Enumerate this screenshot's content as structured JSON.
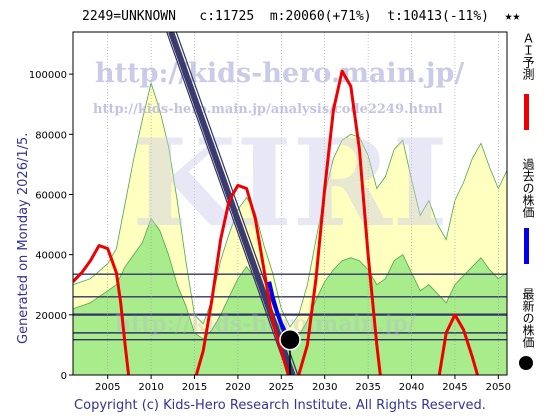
{
  "header": {
    "code": "2249=UNKNOWN",
    "current": "c:11725",
    "median": "m:20060(+71%)",
    "target": "t:10413(-11%)",
    "stars": "★★"
  },
  "generated_label": "Generated on Monday 2026/1/5.",
  "copyright": "Copyright (c) Kids-Hero Research Institute. All Rights Reserved.",
  "watermark": {
    "url_main": "http://kids-hero.main.jp/",
    "url_sub": "http://kids-hero.main.jp/analysis/code2249.html",
    "logo": "KIRI"
  },
  "legend": {
    "ai_forecast": "ＡＩ予測",
    "past_price": "過去の株価",
    "latest_price": "最新の株価",
    "colors": {
      "ai_forecast": "#ee0000",
      "past_price": "#0000ee",
      "latest_price": "#000000"
    }
  },
  "chart_data": {
    "type": "area",
    "x_range": [
      2001,
      2051
    ],
    "y_range": [
      0,
      114000
    ],
    "x_ticks": [
      2005,
      2010,
      2015,
      2020,
      2025,
      2030,
      2035,
      2040,
      2045,
      2050
    ],
    "y_ticks": [
      0,
      20000,
      40000,
      60000,
      80000,
      100000
    ],
    "horizontal_levels": [
      11725,
      14000,
      20060,
      26000,
      33500
    ],
    "latest_point": {
      "x": 2026.0,
      "y": 11725
    },
    "band_outer": [
      [
        2001,
        30000
      ],
      [
        2003,
        32000
      ],
      [
        2005,
        37000
      ],
      [
        2006,
        42000
      ],
      [
        2007,
        57000
      ],
      [
        2008,
        72000
      ],
      [
        2009,
        85000
      ],
      [
        2010,
        97000
      ],
      [
        2011,
        88000
      ],
      [
        2012,
        76000
      ],
      [
        2013,
        58000
      ],
      [
        2014,
        38000
      ],
      [
        2015,
        20000
      ],
      [
        2016,
        17000
      ],
      [
        2017,
        25000
      ],
      [
        2018,
        38000
      ],
      [
        2019,
        47000
      ],
      [
        2020,
        55000
      ],
      [
        2021,
        59000
      ],
      [
        2022,
        54000
      ],
      [
        2023,
        43000
      ],
      [
        2024,
        34000
      ],
      [
        2025,
        22000
      ],
      [
        2026,
        16000
      ],
      [
        2027,
        20000
      ],
      [
        2028,
        30000
      ],
      [
        2029,
        45000
      ],
      [
        2030,
        60000
      ],
      [
        2031,
        72000
      ],
      [
        2032,
        78000
      ],
      [
        2033,
        80000
      ],
      [
        2034,
        79000
      ],
      [
        2035,
        73000
      ],
      [
        2036,
        62000
      ],
      [
        2037,
        66000
      ],
      [
        2038,
        75000
      ],
      [
        2039,
        78000
      ],
      [
        2040,
        65000
      ],
      [
        2041,
        53000
      ],
      [
        2042,
        58000
      ],
      [
        2043,
        50000
      ],
      [
        2044,
        45000
      ],
      [
        2045,
        58000
      ],
      [
        2046,
        64000
      ],
      [
        2047,
        72000
      ],
      [
        2048,
        77000
      ],
      [
        2049,
        69000
      ],
      [
        2050,
        62000
      ],
      [
        2051,
        68000
      ]
    ],
    "band_inner": [
      [
        2001,
        22000
      ],
      [
        2003,
        24000
      ],
      [
        2005,
        28000
      ],
      [
        2006,
        30000
      ],
      [
        2007,
        36000
      ],
      [
        2008,
        40000
      ],
      [
        2009,
        44000
      ],
      [
        2010,
        52000
      ],
      [
        2011,
        48000
      ],
      [
        2012,
        40000
      ],
      [
        2013,
        30000
      ],
      [
        2014,
        23000
      ],
      [
        2015,
        14000
      ],
      [
        2016,
        12000
      ],
      [
        2017,
        15000
      ],
      [
        2018,
        20000
      ],
      [
        2019,
        26000
      ],
      [
        2020,
        32000
      ],
      [
        2021,
        36000
      ],
      [
        2022,
        32000
      ],
      [
        2023,
        26000
      ],
      [
        2024,
        20000
      ],
      [
        2025,
        15000
      ],
      [
        2026,
        11000
      ],
      [
        2027,
        13000
      ],
      [
        2028,
        18000
      ],
      [
        2029,
        25000
      ],
      [
        2030,
        31000
      ],
      [
        2031,
        35000
      ],
      [
        2032,
        38000
      ],
      [
        2033,
        39000
      ],
      [
        2034,
        38000
      ],
      [
        2035,
        35000
      ],
      [
        2036,
        30000
      ],
      [
        2037,
        32000
      ],
      [
        2038,
        38000
      ],
      [
        2039,
        40000
      ],
      [
        2040,
        34000
      ],
      [
        2041,
        28000
      ],
      [
        2042,
        30000
      ],
      [
        2043,
        27000
      ],
      [
        2044,
        24000
      ],
      [
        2045,
        30000
      ],
      [
        2046,
        33000
      ],
      [
        2047,
        36000
      ],
      [
        2048,
        39000
      ],
      [
        2049,
        35000
      ],
      [
        2050,
        32000
      ],
      [
        2051,
        34000
      ]
    ],
    "ai_forecast": [
      [
        2001,
        31000
      ],
      [
        2002,
        34000
      ],
      [
        2003,
        38000
      ],
      [
        2004,
        43000
      ],
      [
        2005,
        42000
      ],
      [
        2006,
        34000
      ],
      [
        2006.5,
        24000
      ],
      [
        2007,
        10000
      ],
      [
        2007.4,
        0
      ],
      null,
      [
        2015.2,
        0
      ],
      [
        2016,
        8000
      ],
      [
        2017,
        25000
      ],
      [
        2018,
        45000
      ],
      [
        2019,
        58000
      ],
      [
        2020,
        63000
      ],
      [
        2021,
        62000
      ],
      [
        2022,
        52000
      ],
      [
        2023,
        35000
      ],
      [
        2024,
        18000
      ],
      [
        2025,
        8000
      ],
      [
        2025.8,
        0
      ],
      null,
      [
        2027,
        0
      ],
      [
        2028,
        10000
      ],
      [
        2029,
        32000
      ],
      [
        2030,
        62000
      ],
      [
        2031,
        88000
      ],
      [
        2032,
        101000
      ],
      [
        2033,
        96000
      ],
      [
        2034,
        75000
      ],
      [
        2035,
        40000
      ],
      [
        2036,
        10000
      ],
      [
        2036.4,
        0
      ],
      null,
      [
        2043.2,
        0
      ],
      [
        2044,
        14000
      ],
      [
        2045,
        20000
      ],
      [
        2046,
        15000
      ],
      [
        2047,
        6000
      ],
      [
        2047.6,
        0
      ]
    ],
    "past_price": [
      [
        2023.6,
        31000
      ],
      [
        2024,
        26000
      ],
      [
        2024.5,
        21000
      ],
      [
        2025,
        17000
      ],
      [
        2025.5,
        14000
      ],
      [
        2026,
        11725
      ]
    ],
    "trend_line": [
      [
        2012.3,
        114000
      ],
      [
        2026.3,
        0
      ]
    ],
    "trend_bracket_left": [
      [
        2011.8,
        114000
      ],
      [
        2025.8,
        0
      ]
    ],
    "trend_bracket_right": [
      [
        2012.9,
        114000
      ],
      [
        2026.9,
        0
      ]
    ]
  }
}
